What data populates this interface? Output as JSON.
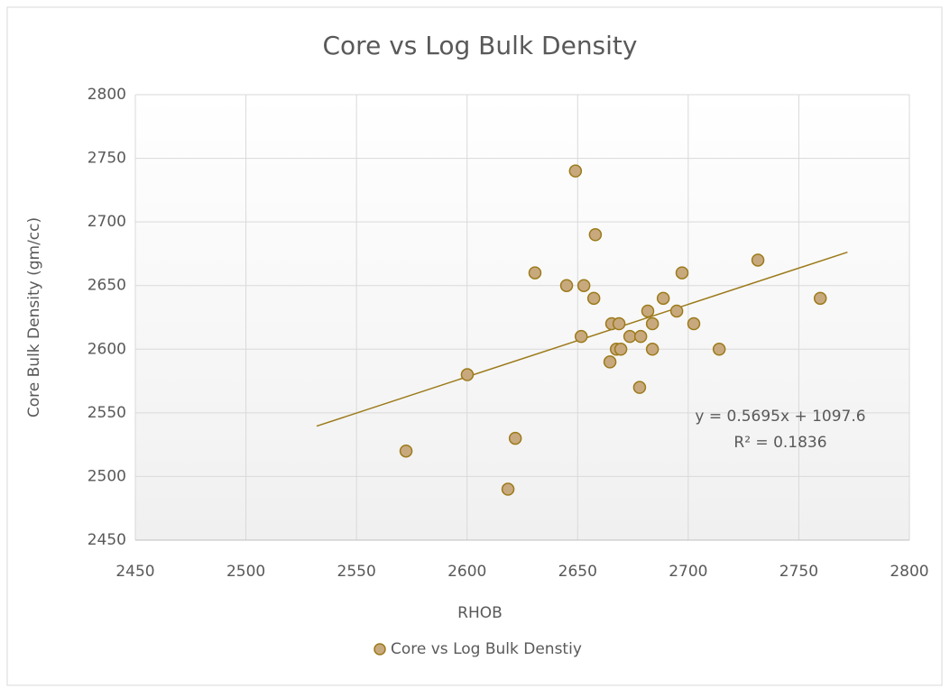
{
  "chart_data": {
    "type": "scatter",
    "title": "Core vs Log Bulk Density",
    "x_label": "RHOB",
    "y_label": "Core Bulk Density  (gm/cc)",
    "series": [
      {
        "name": "Core vs Log Bulk Denstiy",
        "color": "#c8a97e",
        "edge_color": "#9c7a1a",
        "x": [
          2572.4,
          2600.1,
          2621.8,
          2618.5,
          2630.7,
          2645,
          2649,
          2652.8,
          2651.6,
          2658,
          2657.3,
          2665.4,
          2668.7,
          2667.5,
          2669.5,
          2664.6,
          2673.6,
          2678.5,
          2678,
          2681.7,
          2683.8,
          2683.8,
          2688.7,
          2694.8,
          2697.2,
          2702.5,
          2714,
          2731.5,
          2759.7
        ],
        "values": [
          2520,
          2580,
          2530,
          2490,
          2660,
          2650,
          2740,
          2650,
          2610,
          2690,
          2640,
          2620,
          2620,
          2600,
          2600,
          2590,
          2610,
          2610,
          2570,
          2630,
          2620,
          2600,
          2640,
          2630,
          2660,
          2620,
          2600,
          2670,
          2640
        ]
      }
    ],
    "trendline": {
      "slope": 0.5695,
      "intercept": 1097.6,
      "x": [
        2532,
        2772
      ],
      "color": "#9c7a1a",
      "equation": "y = 0.5695x + 1097.6",
      "r_squared": 0.1836,
      "r_squared_label": "R² = 0.1836"
    },
    "xlim": [
      2450,
      2800
    ],
    "xticks": [
      2450,
      2500,
      2550,
      2600,
      2650,
      2700,
      2750,
      2800
    ],
    "ylim": [
      2450,
      2800
    ],
    "yticks": [
      2450,
      2500,
      2550,
      2600,
      2650,
      2700,
      2750,
      2800
    ],
    "grid": true,
    "legend": "bottom"
  }
}
